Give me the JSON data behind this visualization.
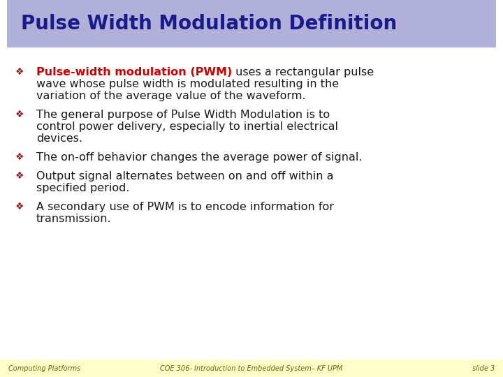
{
  "title": "Pulse Width Modulation Definition",
  "title_color": "#1a1a8c",
  "title_bg_color": "#b0b0d8",
  "title_font_size": 20,
  "slide_bg_color": "#ffffff",
  "footer_bg_color": "#ffffcc",
  "footer_left": "Computing Platforms",
  "footer_center": "COE 306- Introduction to Embedded System– KF UPM",
  "footer_right": "slide 3",
  "footer_font_size": 7,
  "bullet_color": "#8b1a1a",
  "bullet_symbol": "❖",
  "bullet_font_size": 10,
  "body_font_size": 11.5,
  "body_color": "#1a1a1a",
  "highlight_color": "#cc0000",
  "bullets": [
    {
      "highlight": "Pulse-width modulation (PWM)",
      "highlight_rest": " uses a rectangular pulse wave whose pulse width is modulated resulting in the variation of the average value of the waveform.",
      "lines": [
        [
          "red",
          "Pulse-width modulation (PWM)",
          "black",
          " uses a rectangular pulse wave whose"
        ],
        [
          "black",
          "pulse width is modulated resulting in the variation of the average value of the waveform.",
          "",
          ""
        ]
      ],
      "all_lines": [
        {
          "red": "Pulse-width modulation (PWM)",
          "black": " uses a rectangular pulse"
        },
        {
          "red": "",
          "black": "wave whose pulse width is modulated resulting in the"
        },
        {
          "red": "",
          "black": "variation of the average value of the waveform."
        }
      ]
    },
    {
      "highlight": "",
      "all_lines": [
        {
          "red": "",
          "black": "The general purpose of Pulse Width Modulation is to"
        },
        {
          "red": "",
          "black": "control power delivery, especially to inertial electrical"
        },
        {
          "red": "",
          "black": "devices."
        }
      ]
    },
    {
      "highlight": "",
      "all_lines": [
        {
          "red": "",
          "black": "The on-off behavior changes the average power of signal."
        }
      ]
    },
    {
      "highlight": "",
      "all_lines": [
        {
          "red": "",
          "black": "Output signal alternates between on and off within a"
        },
        {
          "red": "",
          "black": "specified period."
        }
      ]
    },
    {
      "highlight": "",
      "all_lines": [
        {
          "red": "",
          "black": "A secondary use of PWM is to encode information for"
        },
        {
          "red": "",
          "black": "transmission."
        }
      ]
    }
  ]
}
